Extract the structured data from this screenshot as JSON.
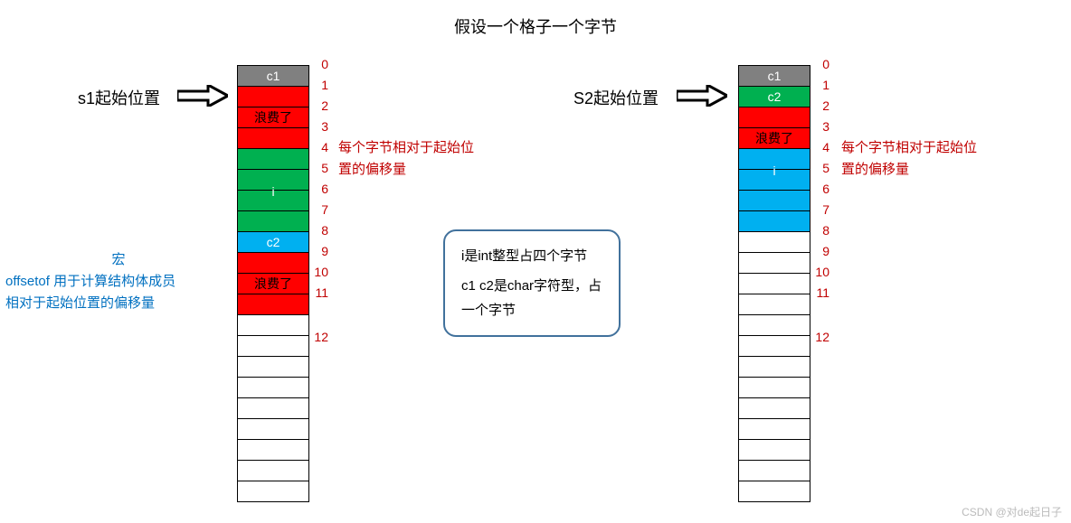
{
  "title": "假设一个格子一个字节",
  "colors": {
    "grey": "#808080",
    "red": "#ff0000",
    "green": "#00b050",
    "blue": "#00b0f0",
    "white": "#ffffff",
    "index": "#c00000",
    "textBlue": "#0070c0",
    "boxBorder": "#41719c"
  },
  "left": {
    "pointerLabel": "s1起始位置",
    "cells": [
      {
        "fill": "grey",
        "label": "c1",
        "labelColor": "#ffffff",
        "index": 0
      },
      {
        "fill": "red",
        "label": "",
        "index": 1
      },
      {
        "fill": "red",
        "label": "浪费了",
        "labelColor": "#000000",
        "index": 2
      },
      {
        "fill": "red",
        "label": "",
        "index": 3
      },
      {
        "fill": "green",
        "label": "",
        "index": 4
      },
      {
        "fill": "green",
        "label": "",
        "index": 5
      },
      {
        "fill": "green",
        "label": "i",
        "labelColor": "#ffffff",
        "index": 6
      },
      {
        "fill": "green",
        "label": "",
        "index": 7
      },
      {
        "fill": "blue",
        "label": "c2",
        "labelColor": "#ffffff",
        "index": 8
      },
      {
        "fill": "red",
        "label": "",
        "index": 9
      },
      {
        "fill": "red",
        "label": "浪费了",
        "labelColor": "#000000",
        "index": 10
      },
      {
        "fill": "red",
        "label": "",
        "index": 11
      },
      {
        "fill": "white",
        "label": "",
        "index": 12,
        "numBelow": true
      },
      {
        "fill": "white",
        "label": ""
      },
      {
        "fill": "white",
        "label": ""
      },
      {
        "fill": "white",
        "label": ""
      },
      {
        "fill": "white",
        "label": ""
      },
      {
        "fill": "white",
        "label": ""
      },
      {
        "fill": "white",
        "label": ""
      },
      {
        "fill": "white",
        "label": ""
      },
      {
        "fill": "white",
        "label": ""
      }
    ],
    "sideNote": "每个字节相对于起始位置的偏移量",
    "macroNote": "宏\noffsetof 用于计算结构体成员\n相对于起始位置的偏移量"
  },
  "right": {
    "pointerLabel": "S2起始位置",
    "cells": [
      {
        "fill": "grey",
        "label": "c1",
        "labelColor": "#ffffff",
        "index": 0
      },
      {
        "fill": "green",
        "label": "c2",
        "labelColor": "#ffffff",
        "index": 1
      },
      {
        "fill": "red",
        "label": "",
        "index": 2
      },
      {
        "fill": "red",
        "label": "浪费了",
        "labelColor": "#000000",
        "index": 3
      },
      {
        "fill": "blue",
        "label": "",
        "index": 4
      },
      {
        "fill": "blue",
        "label": "i",
        "labelColor": "#ffffff",
        "index": 5
      },
      {
        "fill": "blue",
        "label": "",
        "index": 6
      },
      {
        "fill": "blue",
        "label": "",
        "index": 7
      },
      {
        "fill": "white",
        "label": "",
        "index": 8
      },
      {
        "fill": "white",
        "label": "",
        "index": 9
      },
      {
        "fill": "white",
        "label": "",
        "index": 10
      },
      {
        "fill": "white",
        "label": "",
        "index": 11
      },
      {
        "fill": "white",
        "label": "",
        "index": 12,
        "numBelow": true
      },
      {
        "fill": "white",
        "label": ""
      },
      {
        "fill": "white",
        "label": ""
      },
      {
        "fill": "white",
        "label": ""
      },
      {
        "fill": "white",
        "label": ""
      },
      {
        "fill": "white",
        "label": ""
      },
      {
        "fill": "white",
        "label": ""
      },
      {
        "fill": "white",
        "label": ""
      },
      {
        "fill": "white",
        "label": ""
      }
    ],
    "sideNote": "每个字节相对于起始位置的偏移量"
  },
  "infoBox": {
    "line1": "i是int整型占四个字节",
    "line2": "c1 c2是char字符型，占一个字节"
  },
  "watermark": "CSDN @对de起日子"
}
